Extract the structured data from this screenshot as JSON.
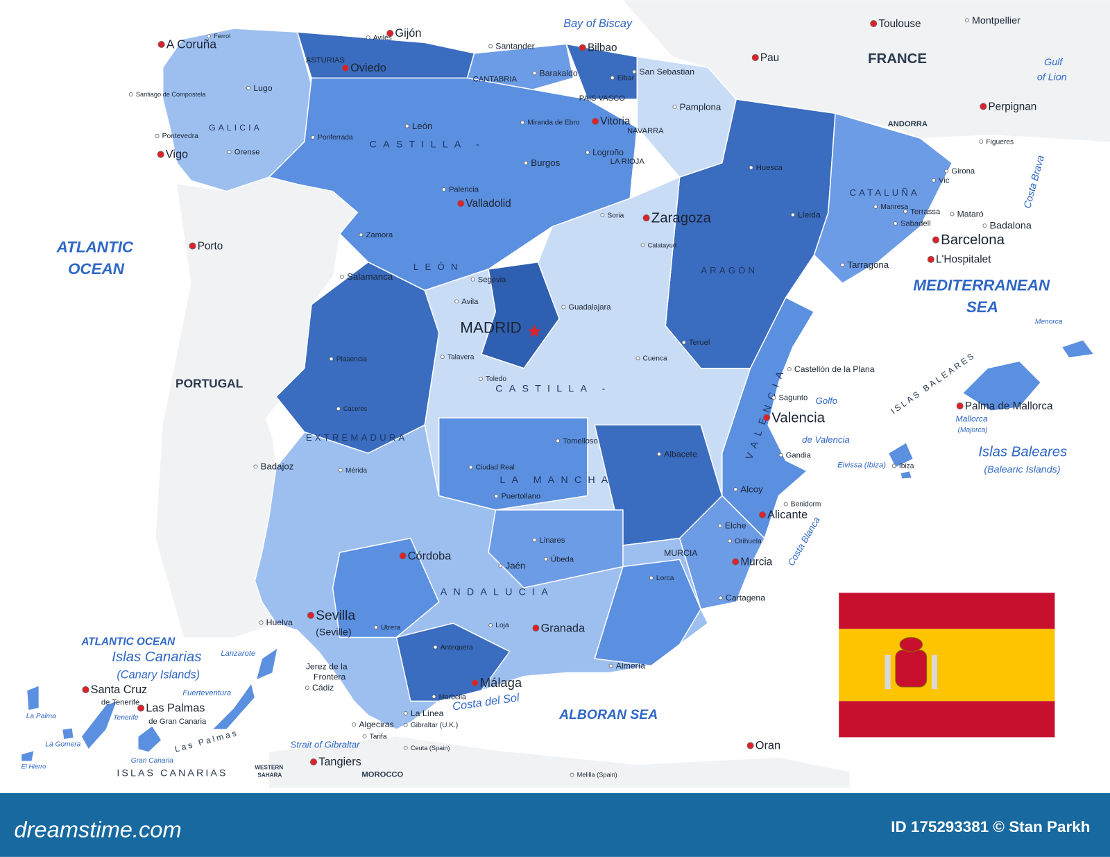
{
  "map": {
    "seas": [
      "Bay of Biscay",
      "ATLANTIC",
      "OCEAN",
      "MEDITERRANEAN",
      "SEA",
      "ALBORAN SEA",
      "Gulf",
      "of Lion",
      "ATLANTIC OCEAN",
      "Strait of Gibraltar",
      "Golfo",
      "de Valencia",
      "Costa del Sol",
      "Costa Brava",
      "Costa Blanca"
    ],
    "countries": [
      "FRANCE",
      "PORTUGAL",
      "ANDORRA",
      "MOROCCO",
      "WESTERN",
      "SAHARA"
    ],
    "regions": [
      "GALICIA",
      "ASTURIAS",
      "CANTABRIA",
      "PAIS VASCO",
      "NAVARRA",
      "LA RIOJA",
      "ARAGÓN",
      "CATALUÑA",
      "CASTILLA -",
      "LEÓN",
      "EXTREMADURA",
      "CASTILLA -",
      "LA MANCHA",
      "VALENCIA",
      "MURCIA",
      "ANDALUCIA"
    ],
    "capital": "MADRID",
    "cities": [
      "A Coruña",
      "Ferrol",
      "Gijón",
      "Avilés",
      "Oviedo",
      "Santander",
      "Bilbao",
      "San Sebastian",
      "Vitoria",
      "Pamplona",
      "Logroño",
      "Lugo",
      "Santiago de Compostela",
      "Pontevedra",
      "Vigo",
      "Orense",
      "León",
      "Burgos",
      "Palencia",
      "Valladolid",
      "Soria",
      "Zaragoza",
      "Huesca",
      "Lleida",
      "Girona",
      "Barcelona",
      "L'Hospitalet",
      "Badalona",
      "Tarragona",
      "Porto",
      "Zamora",
      "Salamanca",
      "Segovia",
      "Avila",
      "Guadalajara",
      "Cuenca",
      "Teruel",
      "Castellón de la Plana",
      "Valencia",
      "Cáceres",
      "Badajoz",
      "Mérida",
      "Toledo",
      "Ciudad Real",
      "Albacete",
      "Alcoy",
      "Alicante",
      "Elche",
      "Murcia",
      "Cartagena",
      "Córdoba",
      "Jaén",
      "Sevilla",
      "(Seville)",
      "Huelva",
      "Granada",
      "Almería",
      "Málaga",
      "Jerez de la",
      "Frontera",
      "Cádiz",
      "Algeciras",
      "Gibraltar (U.K.)",
      "La Línea",
      "Tarifa",
      "Marbella",
      "Tangiers",
      "Ceuta (Spain)",
      "Melilla (Spain)",
      "Oran",
      "Toulouse",
      "Montpellier",
      "Pau",
      "Perpignan",
      "Palma de Mallorca",
      "Ibiza",
      "Santa Cruz",
      "de Tenerife",
      "Las Palmas",
      "de Gran Canaria",
      "Tomelloso",
      "Puertollano",
      "Linares",
      "Úbeda",
      "Lorca",
      "Gandia",
      "Benidorm",
      "Orihuela",
      "Calatayud",
      "Ponferrada",
      "Miranda de Ebro",
      "Plasencia",
      "Talavera",
      "Mataró",
      "Sabadell",
      "Terrassa",
      "Manresa",
      "Vic",
      "Figueres",
      "Sagunto",
      "Utrera",
      "Antequera",
      "Loja",
      "Barakaldo",
      "Eibar"
    ],
    "islands": [
      "Islas Canarias",
      "(Canary Islands)",
      "ISLAS CANARIAS",
      "Islas Baleares",
      "(Balearic Islands)",
      "ISLAS BALEARES",
      "Mallorca",
      "(Majorca)",
      "Menorca",
      "Eivissa (Ibiza)",
      "Lanzarote",
      "Fuerteventura",
      "Gran Canaria",
      "Tenerife",
      "La Palma",
      "La Gomera",
      "El Hierro",
      "Las Palmas"
    ]
  },
  "footer": {
    "brand": "dreamstime.com",
    "credit": "ID 175293381 © Stan Parkh"
  }
}
